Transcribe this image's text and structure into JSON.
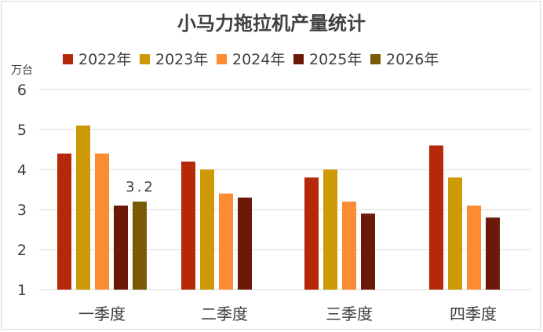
{
  "chart_data": {
    "type": "bar",
    "title": "小马力拖拉机产量统计",
    "unit_label": "万台",
    "xlabel": "",
    "ylabel": "万台",
    "ylim": [
      1,
      6
    ],
    "yticks": [
      1,
      2,
      3,
      4,
      5,
      6
    ],
    "grid": true,
    "legend_position": "top",
    "categories": [
      "一季度",
      "二季度",
      "三季度",
      "四季度"
    ],
    "series": [
      {
        "name": "2022年",
        "color": "#B5280A",
        "values": [
          4.4,
          4.2,
          3.8,
          4.6
        ]
      },
      {
        "name": "2023年",
        "color": "#CC9A06",
        "values": [
          5.1,
          4.0,
          4.0,
          3.8
        ]
      },
      {
        "name": "2024年",
        "color": "#FB8C33",
        "values": [
          4.4,
          3.4,
          3.2,
          3.1
        ]
      },
      {
        "name": "2025年",
        "color": "#6B1A0A",
        "values": [
          3.1,
          3.3,
          2.9,
          2.8
        ]
      },
      {
        "name": "2026年",
        "color": "#7A5A05",
        "values": [
          3.2,
          null,
          null,
          null
        ]
      }
    ],
    "annotations": [
      {
        "series": "2026年",
        "category": "一季度",
        "text": "3.2"
      }
    ]
  }
}
